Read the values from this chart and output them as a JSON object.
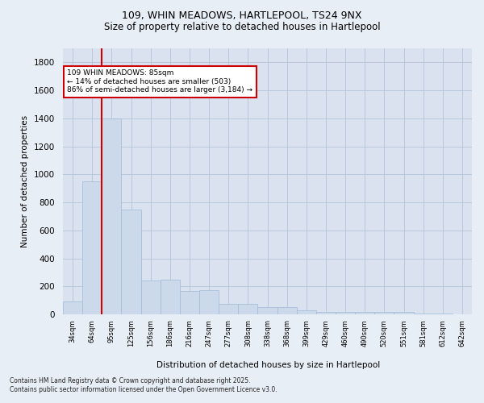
{
  "title_line1": "109, WHIN MEADOWS, HARTLEPOOL, TS24 9NX",
  "title_line2": "Size of property relative to detached houses in Hartlepool",
  "xlabel": "Distribution of detached houses by size in Hartlepool",
  "ylabel": "Number of detached properties",
  "bar_color": "#ccd9ea",
  "bar_edge_color": "#a8bedb",
  "background_color": "#e8eef5",
  "plot_bg_color": "#dae2ef",
  "grid_color": "#c5cfe0",
  "vline_color": "#cc0000",
  "vline_x": 1.5,
  "annotation_text": "109 WHIN MEADOWS: 85sqm\n← 14% of detached houses are smaller (503)\n86% of semi-detached houses are larger (3,184) →",
  "annotation_box_color": "#ffffff",
  "annotation_box_edge": "#cc0000",
  "footer_text": "Contains HM Land Registry data © Crown copyright and database right 2025.\nContains public sector information licensed under the Open Government Licence v3.0.",
  "categories": [
    "34sqm",
    "64sqm",
    "95sqm",
    "125sqm",
    "156sqm",
    "186sqm",
    "216sqm",
    "247sqm",
    "277sqm",
    "308sqm",
    "338sqm",
    "368sqm",
    "399sqm",
    "429sqm",
    "460sqm",
    "490sqm",
    "520sqm",
    "551sqm",
    "581sqm",
    "612sqm",
    "642sqm"
  ],
  "values": [
    90,
    950,
    1400,
    750,
    240,
    245,
    165,
    170,
    75,
    75,
    50,
    50,
    30,
    20,
    20,
    20,
    15,
    15,
    5,
    5,
    0
  ],
  "ylim": [
    0,
    1900
  ],
  "yticks": [
    0,
    200,
    400,
    600,
    800,
    1000,
    1200,
    1400,
    1600,
    1800
  ]
}
